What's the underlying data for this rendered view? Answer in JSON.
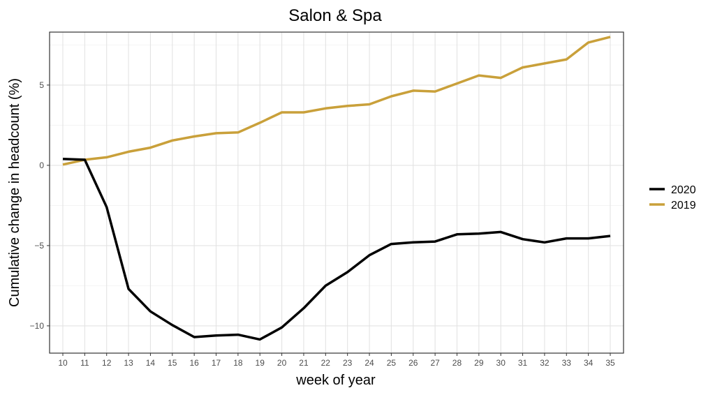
{
  "chart_data": {
    "type": "line",
    "title": "Salon & Spa",
    "xlabel": "week of year",
    "ylabel": "Cumulative change in headcount (%)",
    "x": [
      10,
      11,
      12,
      13,
      14,
      15,
      16,
      17,
      18,
      19,
      20,
      21,
      22,
      23,
      24,
      25,
      26,
      27,
      28,
      29,
      30,
      31,
      32,
      33,
      34,
      35
    ],
    "xlim": [
      10,
      35
    ],
    "ylim": [
      -11.7,
      8.3
    ],
    "yticks": [
      -10,
      -5,
      0,
      5
    ],
    "ytick_labels": [
      "−10",
      "−5",
      "0",
      "5"
    ],
    "grid": true,
    "legend_position": "right",
    "series": [
      {
        "name": "2020",
        "color": "#000000",
        "values": [
          0.4,
          0.35,
          -2.6,
          -7.7,
          -9.1,
          -9.95,
          -10.7,
          -10.6,
          -10.55,
          -10.85,
          -10.1,
          -8.9,
          -7.5,
          -6.65,
          -5.6,
          -4.9,
          -4.8,
          -4.75,
          -4.3,
          -4.25,
          -4.15,
          -4.6,
          -4.8,
          -4.55,
          -4.55,
          -4.4
        ]
      },
      {
        "name": "2019",
        "color": "#C9A03A",
        "values": [
          0.05,
          0.35,
          0.5,
          0.85,
          1.1,
          1.55,
          1.8,
          2.0,
          2.05,
          2.65,
          3.3,
          3.3,
          3.55,
          3.7,
          3.8,
          4.3,
          4.65,
          4.6,
          5.1,
          5.6,
          5.45,
          6.1,
          6.35,
          6.6,
          7.65,
          8.0
        ]
      }
    ]
  }
}
